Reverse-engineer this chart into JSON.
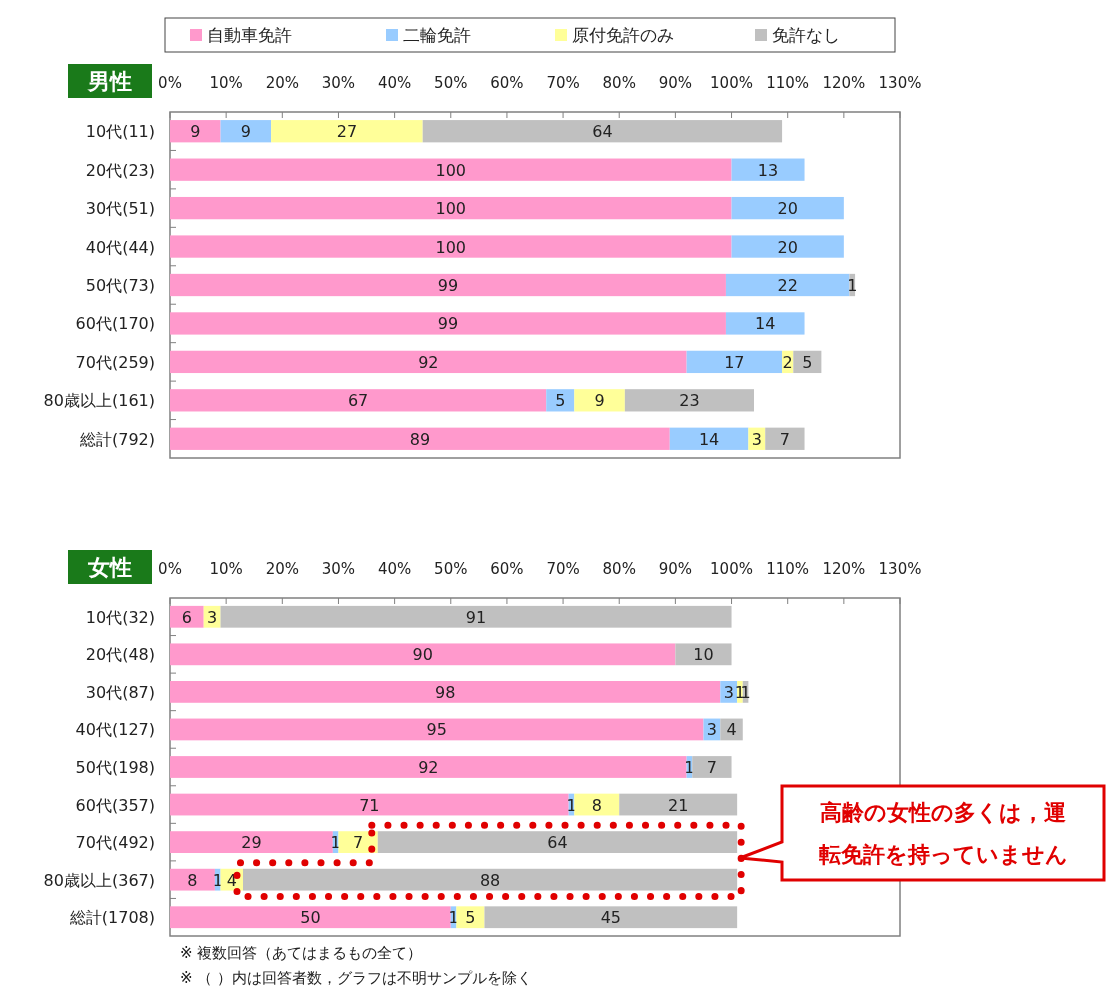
{
  "chart_data": [
    {
      "type": "bar",
      "orientation": "horizontal",
      "stacked": true,
      "title": "男性",
      "legend": "top",
      "data_labels": true,
      "categories": [
        "10代(11)",
        "20代(23)",
        "30代(51)",
        "40代(44)",
        "50代(73)",
        "60代(170)",
        "70代(259)",
        "80歳以上(161)",
        "総計(792)"
      ],
      "xlim": [
        0,
        130
      ],
      "xticks": [
        {
          "value": 0,
          "label": "0%"
        },
        {
          "value": 10,
          "label": "10%"
        },
        {
          "value": 20,
          "label": "20%"
        },
        {
          "value": 30,
          "label": "30%"
        },
        {
          "value": 40,
          "label": "40%"
        },
        {
          "value": 50,
          "label": "50%"
        },
        {
          "value": 60,
          "label": "60%"
        },
        {
          "value": 70,
          "label": "70%"
        },
        {
          "value": 80,
          "label": "80%"
        },
        {
          "value": 90,
          "label": "90%"
        },
        {
          "value": 100,
          "label": "100%"
        },
        {
          "value": 110,
          "label": "110%"
        },
        {
          "value": 120,
          "label": "120%"
        },
        {
          "value": 130,
          "label": "130%"
        }
      ],
      "series": [
        {
          "name": "自動車免許",
          "color": "#ff99cc",
          "values": [
            9,
            100,
            100,
            100,
            99,
            99,
            92,
            67,
            89
          ]
        },
        {
          "name": "二輪免許",
          "color": "#99ccff",
          "values": [
            9,
            13,
            20,
            20,
            22,
            14,
            17,
            5,
            14
          ]
        },
        {
          "name": "原付免許のみ",
          "color": "#ffff99",
          "values": [
            27,
            null,
            null,
            null,
            null,
            null,
            2,
            9,
            3
          ]
        },
        {
          "name": "免許なし",
          "color": "#c0c0c0",
          "values": [
            64,
            null,
            null,
            null,
            1,
            null,
            5,
            23,
            7
          ]
        }
      ]
    },
    {
      "type": "bar",
      "orientation": "horizontal",
      "stacked": true,
      "title": "女性",
      "legend": false,
      "data_labels": true,
      "categories": [
        "10代(32)",
        "20代(48)",
        "30代(87)",
        "40代(127)",
        "50代(198)",
        "60代(357)",
        "70代(492)",
        "80歳以上(367)",
        "総計(1708)"
      ],
      "xlim": [
        0,
        130
      ],
      "xticks": [
        {
          "value": 0,
          "label": "0%"
        },
        {
          "value": 10,
          "label": "10%"
        },
        {
          "value": 20,
          "label": "20%"
        },
        {
          "value": 30,
          "label": "30%"
        },
        {
          "value": 40,
          "label": "40%"
        },
        {
          "value": 50,
          "label": "50%"
        },
        {
          "value": 60,
          "label": "60%"
        },
        {
          "value": 70,
          "label": "70%"
        },
        {
          "value": 80,
          "label": "80%"
        },
        {
          "value": 90,
          "label": "90%"
        },
        {
          "value": 100,
          "label": "100%"
        },
        {
          "value": 110,
          "label": "110%"
        },
        {
          "value": 120,
          "label": "120%"
        },
        {
          "value": 130,
          "label": "130%"
        }
      ],
      "series": [
        {
          "color": "#ff99cc",
          "values": [
            6,
            90,
            98,
            95,
            92,
            71,
            29,
            8,
            50
          ]
        },
        {
          "color": "#99ccff",
          "values": [
            null,
            null,
            3,
            3,
            1,
            1,
            1,
            1,
            1
          ]
        },
        {
          "color": "#ffff99",
          "values": [
            3,
            null,
            1,
            null,
            null,
            8,
            7,
            4,
            5
          ]
        },
        {
          "color": "#c0c0c0",
          "values": [
            91,
            10,
            1,
            4,
            7,
            21,
            64,
            88,
            45
          ]
        }
      ],
      "annotations": [
        "高齢の女性の多くは，運転免許を持っていません",
        "※ 複数回答（あてはまるもの全て）",
        "※ （ ）内は回答者数，グラフは不明サンプルを除く"
      ]
    }
  ]
}
